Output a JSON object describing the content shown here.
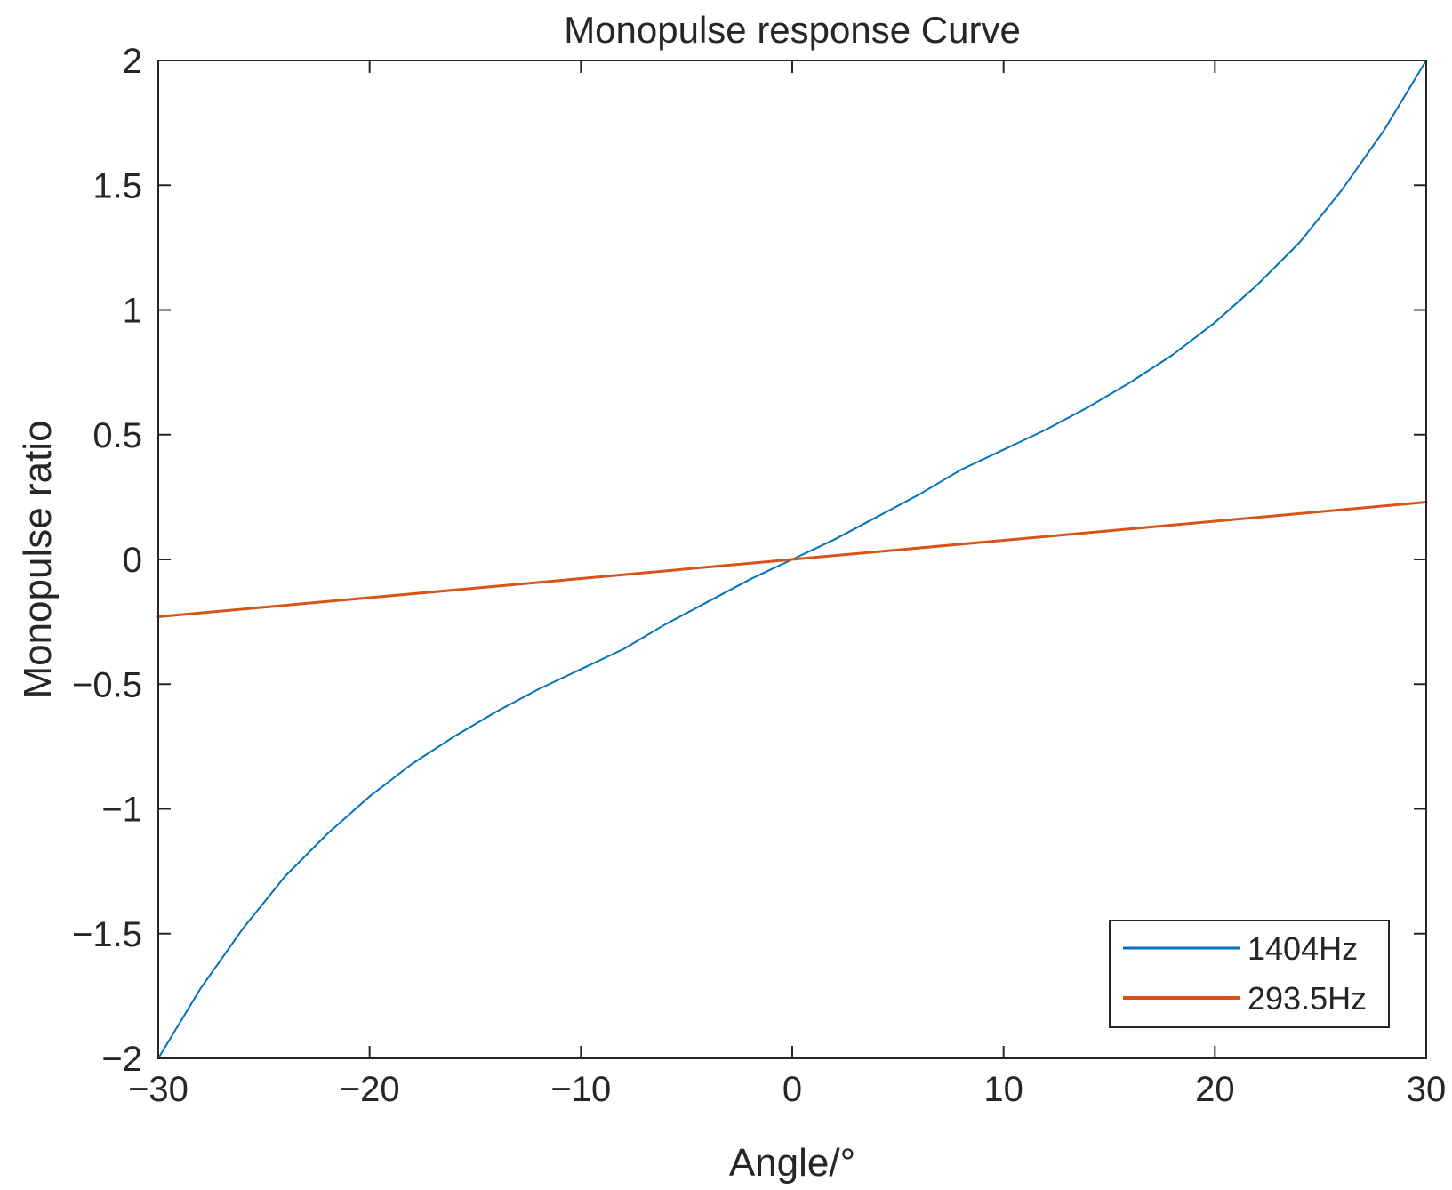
{
  "chart_data": {
    "type": "line",
    "title": "Monopulse response Curve",
    "xlabel": "Angle/°",
    "ylabel": "Monopulse ratio",
    "xlim": [
      -30,
      30
    ],
    "ylim": [
      -2,
      2
    ],
    "x_ticks": [
      -30,
      -20,
      -10,
      0,
      10,
      20,
      30
    ],
    "y_ticks": [
      -2,
      -1.5,
      -1,
      -0.5,
      0,
      0.5,
      1,
      1.5,
      2
    ],
    "x_tick_labels": [
      "−30",
      "−20",
      "−10",
      "0",
      "10",
      "20",
      "30"
    ],
    "y_tick_labels": [
      "−2",
      "−1.5",
      "−1",
      "−0.5",
      "0",
      "0.5",
      "1",
      "1.5",
      "2"
    ],
    "grid": false,
    "legend_position": "bottom-right",
    "series": [
      {
        "name": "1404Hz",
        "color": "#0072BD",
        "x": [
          -30,
          -28,
          -26,
          -24,
          -22,
          -20,
          -18,
          -16,
          -14,
          -12,
          -10,
          -8,
          -6,
          -4,
          -2,
          0,
          2,
          4,
          6,
          8,
          10,
          12,
          14,
          16,
          18,
          20,
          22,
          24,
          26,
          28,
          30
        ],
        "y": [
          -2.0,
          -1.72,
          -1.48,
          -1.27,
          -1.1,
          -0.95,
          -0.82,
          -0.71,
          -0.61,
          -0.52,
          -0.44,
          -0.36,
          -0.26,
          -0.17,
          -0.08,
          0.0,
          0.08,
          0.17,
          0.26,
          0.36,
          0.44,
          0.52,
          0.61,
          0.71,
          0.82,
          0.95,
          1.1,
          1.27,
          1.48,
          1.72,
          2.0
        ]
      },
      {
        "name": "293.5Hz",
        "color": "#D95319",
        "x": [
          -30,
          30
        ],
        "y": [
          -0.23,
          0.23
        ]
      }
    ]
  }
}
